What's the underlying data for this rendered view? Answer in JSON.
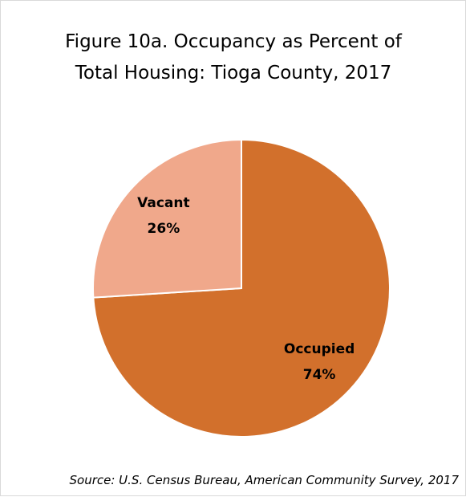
{
  "chart_data": {
    "type": "pie",
    "title": "Figure 10a. Occupancy as Percent of Total Housing: Tioga County, 2017",
    "categories": [
      "Occupied",
      "Vacant"
    ],
    "values": [
      74,
      26
    ],
    "value_labels": [
      "74%",
      "26%"
    ],
    "colors": [
      "#d2702c",
      "#f0a88b"
    ],
    "source": "Source: U.S. Census Bureau, American Community Survey, 2017"
  }
}
